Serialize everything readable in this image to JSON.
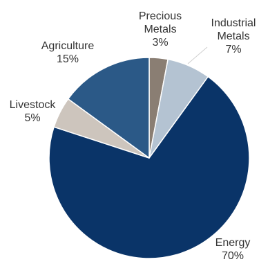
{
  "chart_data": {
    "type": "pie",
    "slices": [
      {
        "label": "Precious Metals",
        "label_lines": [
          "Precious",
          "Metals"
        ],
        "value": 3,
        "value_label": "3%",
        "color": "#8a7e73"
      },
      {
        "label": "Industrial Metals",
        "label_lines": [
          "Industrial",
          "Metals"
        ],
        "value": 7,
        "value_label": "7%",
        "color": "#b4c3d2"
      },
      {
        "label": "Energy",
        "label_lines": [
          "Energy"
        ],
        "value": 70,
        "value_label": "70%",
        "color": "#0a3468"
      },
      {
        "label": "Livestock",
        "label_lines": [
          "Livestock"
        ],
        "value": 5,
        "value_label": "5%",
        "color": "#cdc5bd"
      },
      {
        "label": "Agriculture",
        "label_lines": [
          "Agriculture"
        ],
        "value": 15,
        "value_label": "15%",
        "color": "#2b5987"
      }
    ],
    "start_angle_deg": 0,
    "direction": "clockwise",
    "slice_border_color": "#ffffff",
    "legend": "none"
  }
}
